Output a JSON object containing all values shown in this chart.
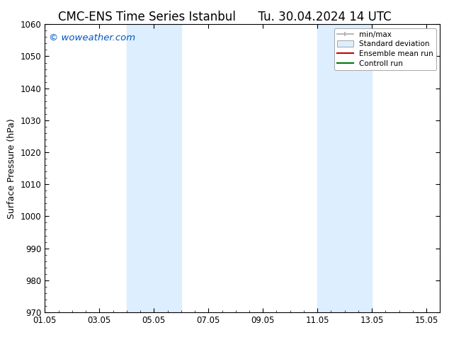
{
  "title_left": "CMC-ENS Time Series Istanbul",
  "title_right": "Tu. 30.04.2024 14 UTC",
  "ylabel": "Surface Pressure (hPa)",
  "ylim": [
    970,
    1060
  ],
  "yticks": [
    970,
    980,
    990,
    1000,
    1010,
    1020,
    1030,
    1040,
    1050,
    1060
  ],
  "xtick_labels": [
    "01.05",
    "03.05",
    "05.05",
    "07.05",
    "09.05",
    "11.05",
    "13.05",
    "15.05"
  ],
  "xtick_positions": [
    0,
    2,
    4,
    6,
    8,
    10,
    12,
    14
  ],
  "x_start": 0,
  "x_end": 14,
  "shaded_bands": [
    {
      "x_start": 3.0,
      "x_end": 4.0,
      "color": "#ddeeff"
    },
    {
      "x_start": 4.0,
      "x_end": 5.0,
      "color": "#ddeeff"
    },
    {
      "x_start": 10.0,
      "x_end": 11.0,
      "color": "#ddeeff"
    },
    {
      "x_start": 11.0,
      "x_end": 12.0,
      "color": "#ddeeff"
    }
  ],
  "watermark": "© woweather.com",
  "watermark_color": "#0055bb",
  "background_color": "#ffffff",
  "plot_bg_color": "#ffffff",
  "legend_entries": [
    {
      "label": "min/max",
      "color": "#aaaaaa",
      "style": "bar"
    },
    {
      "label": "Standard deviation",
      "color": "#ddeeff",
      "style": "rect"
    },
    {
      "label": "Ensemble mean run",
      "color": "#cc0000",
      "style": "line"
    },
    {
      "label": "Controll run",
      "color": "#007700",
      "style": "line"
    }
  ],
  "title_fontsize": 12,
  "tick_fontsize": 8.5,
  "ylabel_fontsize": 9,
  "legend_fontsize": 7.5
}
